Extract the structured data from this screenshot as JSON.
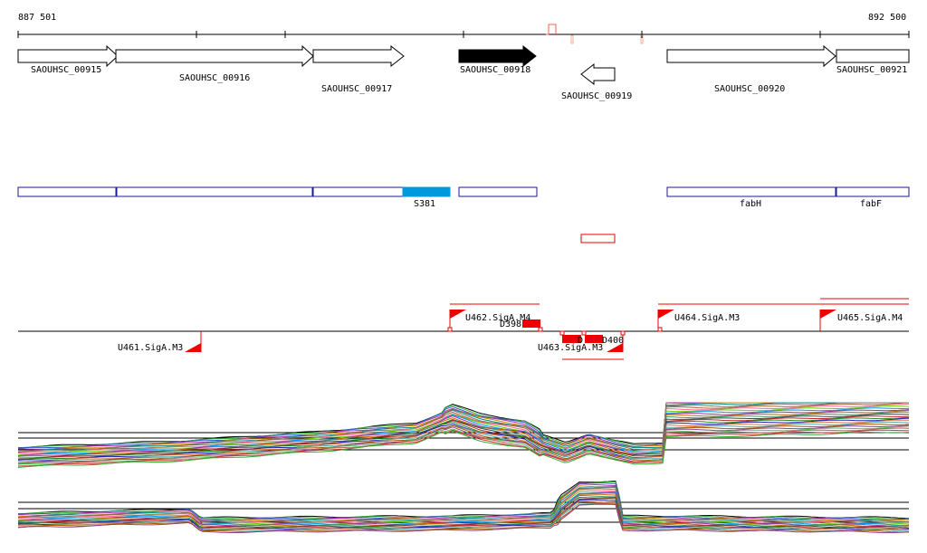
{
  "coord": {
    "start": "887 501",
    "end": "892 500"
  },
  "genes": [
    {
      "id": "g915",
      "label": "SAOUHSC_00915",
      "strand": "+",
      "highlighted": false
    },
    {
      "id": "g916",
      "label": "SAOUHSC_00916",
      "strand": "+",
      "highlighted": false
    },
    {
      "id": "g917",
      "label": "SAOUHSC_00917",
      "strand": "+",
      "highlighted": false
    },
    {
      "id": "g918",
      "label": "SAOUHSC_00918",
      "strand": "+",
      "highlighted": true
    },
    {
      "id": "g919",
      "label": "SAOUHSC_00919",
      "strand": "-",
      "highlighted": false
    },
    {
      "id": "g920",
      "label": "SAOUHSC_00920",
      "strand": "+",
      "highlighted": false
    },
    {
      "id": "g921",
      "label": "SAOUHSC_00921",
      "strand": "+",
      "highlighted": false
    }
  ],
  "operon_labels": {
    "s381": "S381",
    "fabH": "fabH",
    "fabF": "fabF"
  },
  "promoters": {
    "u461": "U461.SigA.M3",
    "u462": "U462.SigA.M4",
    "u463": "U463.SigA.M3",
    "u464": "U464.SigA.M3",
    "u465": "U465.SigA.M4"
  },
  "segments": {
    "d398": "D398",
    "d399": "D",
    "d400": "D400"
  },
  "colors": {
    "outline": "#1a1a99",
    "highlight": "#0099dd",
    "feature": "#ee0000",
    "gene_fill": "#000000",
    "ref_line": "#000000"
  }
}
